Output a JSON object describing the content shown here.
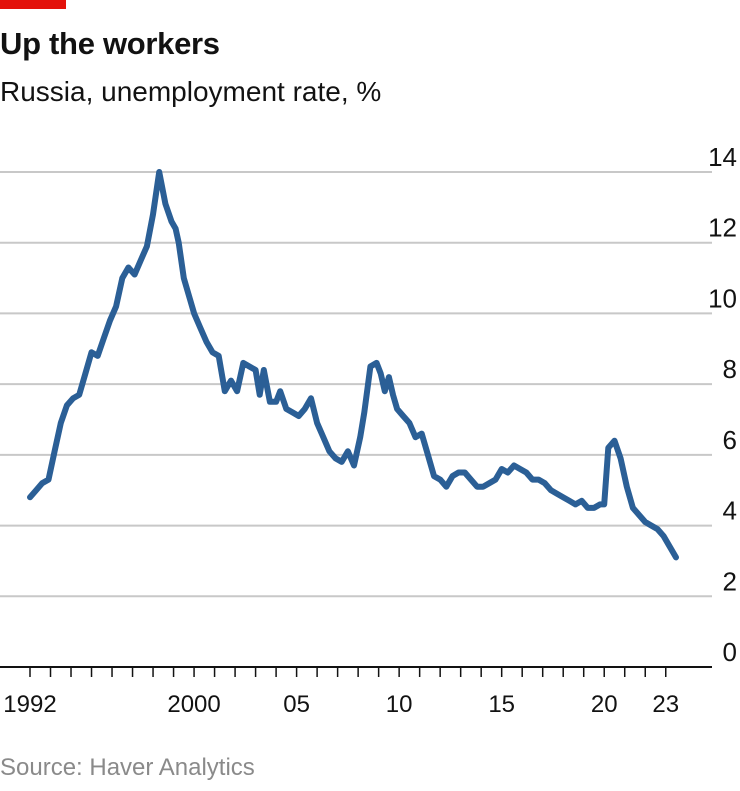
{
  "header": {
    "title": "Up the workers",
    "subtitle": "Russia, unemployment rate, %"
  },
  "footer": {
    "source": "Source: Haver Analytics"
  },
  "colors": {
    "line": "#2b5f96",
    "grid": "#c8c8c8",
    "axis": "#121212",
    "brand": "#e3120b"
  },
  "chart_data": {
    "type": "line",
    "title": "Up the workers",
    "subtitle": "Russia, unemployment rate, %",
    "xlabel": "",
    "ylabel": "",
    "ylim": [
      0,
      14
    ],
    "xlim": [
      1992,
      2023.6
    ],
    "grid": true,
    "y_ticks": [
      {
        "value": 0,
        "label": "0"
      },
      {
        "value": 2,
        "label": "2"
      },
      {
        "value": 4,
        "label": "4"
      },
      {
        "value": 6,
        "label": "6"
      },
      {
        "value": 8,
        "label": "8"
      },
      {
        "value": 10,
        "label": "10"
      },
      {
        "value": 12,
        "label": "12"
      },
      {
        "value": 14,
        "label": "14"
      }
    ],
    "x_ticks": [
      {
        "value": 1992,
        "label": "1992"
      },
      {
        "value": 2000,
        "label": "2000"
      },
      {
        "value": 2005,
        "label": "05"
      },
      {
        "value": 2010,
        "label": "10"
      },
      {
        "value": 2015,
        "label": "15"
      },
      {
        "value": 2020,
        "label": "20"
      },
      {
        "value": 2023,
        "label": "23"
      }
    ],
    "series": [
      {
        "name": "Unemployment rate",
        "x": [
          1992.0,
          1992.3,
          1992.6,
          1992.9,
          1993.2,
          1993.5,
          1993.8,
          1994.1,
          1994.4,
          1994.7,
          1995.0,
          1995.3,
          1995.6,
          1995.9,
          1996.2,
          1996.5,
          1996.8,
          1997.1,
          1997.4,
          1997.7,
          1998.0,
          1998.3,
          1998.6,
          1998.9,
          1999.1,
          1999.25,
          1999.5,
          1999.8,
          2000.0,
          2000.3,
          2000.6,
          2000.9,
          2001.2,
          2001.5,
          2001.8,
          2002.1,
          2002.4,
          2002.7,
          2003.0,
          2003.2,
          2003.4,
          2003.7,
          2004.0,
          2004.2,
          2004.5,
          2004.8,
          2005.1,
          2005.4,
          2005.7,
          2006.0,
          2006.3,
          2006.6,
          2006.9,
          2007.2,
          2007.5,
          2007.8,
          2008.1,
          2008.3,
          2008.6,
          2008.9,
          2009.1,
          2009.3,
          2009.5,
          2009.7,
          2009.9,
          2010.2,
          2010.5,
          2010.8,
          2011.1,
          2011.4,
          2011.7,
          2012.0,
          2012.3,
          2012.6,
          2012.9,
          2013.2,
          2013.5,
          2013.8,
          2014.1,
          2014.4,
          2014.7,
          2015.0,
          2015.3,
          2015.6,
          2015.9,
          2016.2,
          2016.5,
          2016.8,
          2017.1,
          2017.4,
          2017.7,
          2018.0,
          2018.3,
          2018.6,
          2018.9,
          2019.2,
          2019.5,
          2019.8,
          2020.0,
          2020.2,
          2020.5,
          2020.8,
          2021.1,
          2021.4,
          2021.7,
          2022.0,
          2022.3,
          2022.6,
          2022.9,
          2023.2,
          2023.5
        ],
        "values": [
          4.8,
          5.0,
          5.2,
          5.3,
          6.1,
          6.9,
          7.4,
          7.6,
          7.7,
          8.3,
          8.9,
          8.8,
          9.3,
          9.8,
          10.2,
          11.0,
          11.3,
          11.1,
          11.5,
          11.9,
          12.8,
          14.0,
          13.1,
          12.6,
          12.4,
          12.0,
          11.0,
          10.4,
          10.0,
          9.6,
          9.2,
          8.9,
          8.8,
          7.8,
          8.1,
          7.8,
          8.6,
          8.5,
          8.4,
          7.7,
          8.4,
          7.5,
          7.5,
          7.8,
          7.3,
          7.2,
          7.1,
          7.3,
          7.6,
          6.9,
          6.5,
          6.1,
          5.9,
          5.8,
          6.1,
          5.7,
          6.5,
          7.2,
          8.5,
          8.6,
          8.3,
          7.8,
          8.2,
          7.7,
          7.3,
          7.1,
          6.9,
          6.5,
          6.6,
          6.0,
          5.4,
          5.3,
          5.1,
          5.4,
          5.5,
          5.5,
          5.3,
          5.1,
          5.1,
          5.2,
          5.3,
          5.6,
          5.5,
          5.7,
          5.6,
          5.5,
          5.3,
          5.3,
          5.2,
          5.0,
          4.9,
          4.8,
          4.7,
          4.6,
          4.7,
          4.5,
          4.5,
          4.6,
          4.6,
          6.2,
          6.4,
          5.9,
          5.1,
          4.5,
          4.3,
          4.1,
          4.0,
          3.9,
          3.7,
          3.4,
          3.1
        ]
      }
    ]
  }
}
